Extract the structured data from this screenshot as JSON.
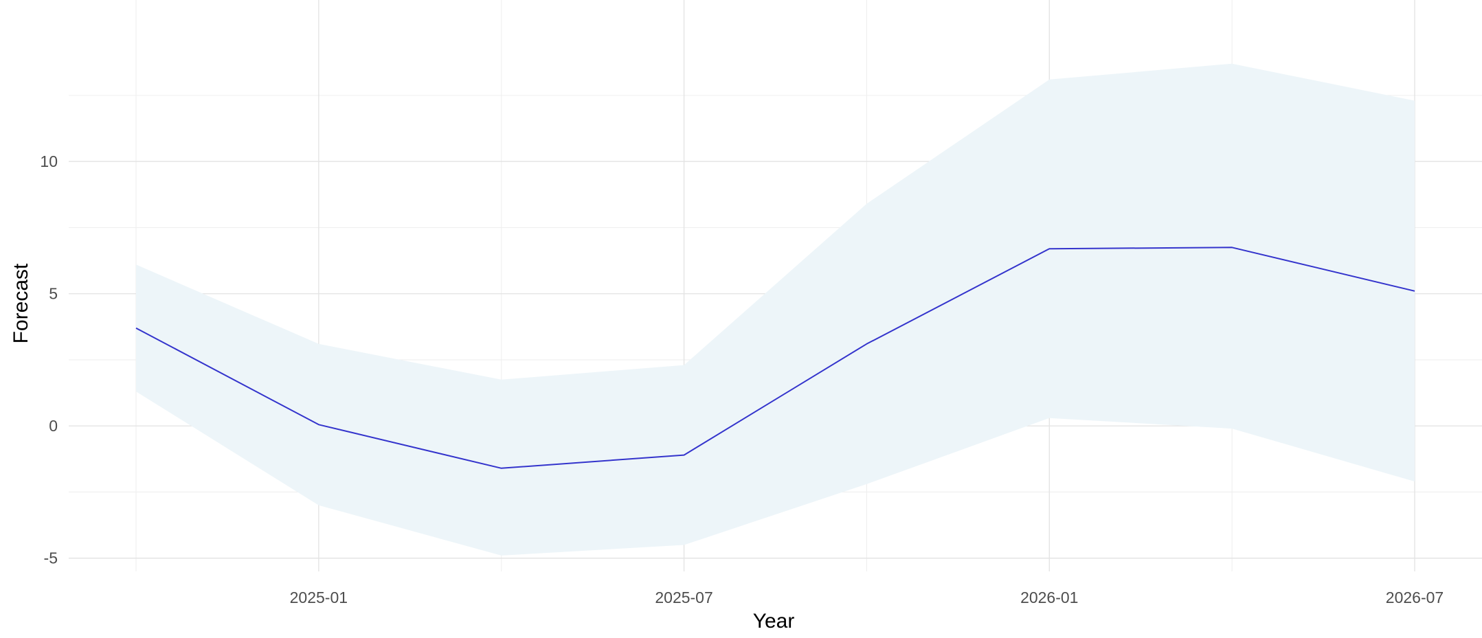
{
  "chart_data": {
    "type": "line",
    "title": "",
    "xlabel": "Year",
    "ylabel": "Forecast",
    "x_tick_labels": [
      "2025-01",
      "2025-07",
      "2026-01",
      "2026-07"
    ],
    "y_tick_labels": [
      "-5",
      "0",
      "5",
      "10"
    ],
    "x": [
      "2024-10",
      "2025-01",
      "2025-04",
      "2025-07",
      "2025-10",
      "2026-01",
      "2026-04",
      "2026-07"
    ],
    "series": [
      {
        "type": "line",
        "values": [
          3.7,
          0.05,
          -1.6,
          -1.1,
          3.1,
          6.7,
          6.75,
          5.1
        ],
        "color": "#3333cc"
      },
      {
        "type": "band",
        "lower": [
          1.3,
          -3.0,
          -4.9,
          -4.5,
          -2.2,
          0.3,
          -0.1,
          -2.1
        ],
        "upper": [
          6.1,
          3.1,
          1.75,
          2.3,
          8.4,
          13.1,
          13.7,
          12.3
        ],
        "color": "#edf5f9"
      }
    ],
    "ylim": [
      -5.5,
      14.6
    ],
    "grid": true,
    "legend": "none"
  }
}
